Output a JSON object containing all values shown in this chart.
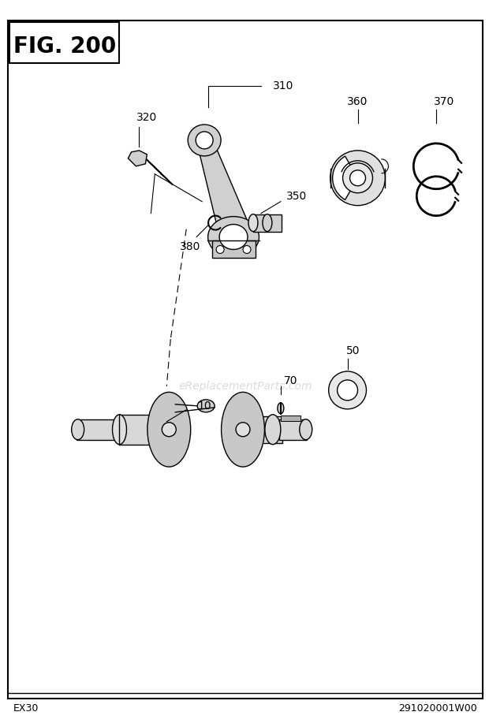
{
  "title": "FIG. 200",
  "footer_left": "EX30",
  "footer_right": "291020001W00",
  "watermark": "eReplacementParts.com",
  "bg_color": "#ffffff",
  "lw": 1.0
}
